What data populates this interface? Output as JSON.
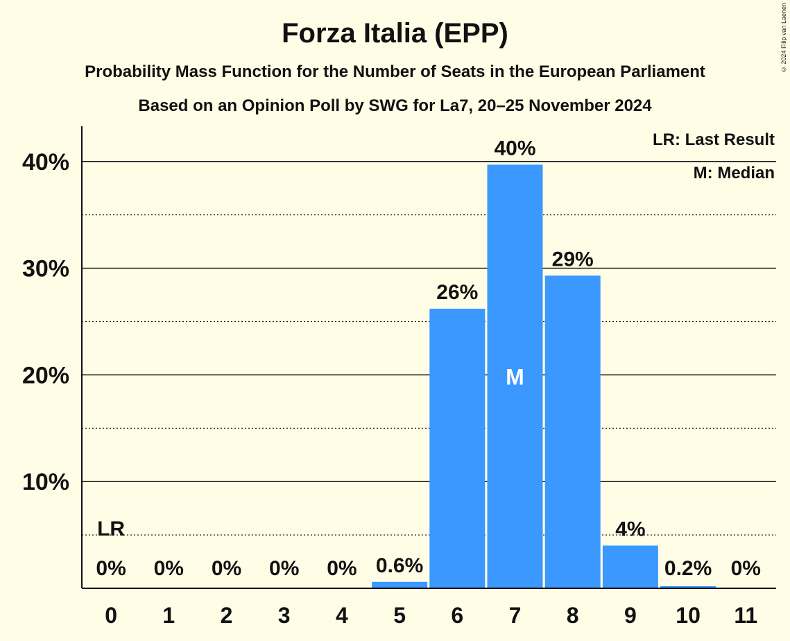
{
  "page": {
    "title": "Forza Italia (EPP)",
    "subtitle1": "Probability Mass Function for the Number of Seats in the European Parliament",
    "subtitle2": "Based on an Opinion Poll by SWG for La7, 20–25 November 2024",
    "copyright": "© 2024 Filip van Laenen"
  },
  "legend": {
    "lr": "LR: Last Result",
    "median": "M: Median"
  },
  "colors": {
    "bar": "#3A98FF",
    "background": "#FFFDE6",
    "text": "#111111"
  },
  "chart_data": {
    "type": "bar",
    "title": "Forza Italia (EPP)",
    "xlabel": "",
    "ylabel": "",
    "categories": [
      "0",
      "1",
      "2",
      "3",
      "4",
      "5",
      "6",
      "7",
      "8",
      "9",
      "10",
      "11"
    ],
    "values": [
      0,
      0,
      0,
      0,
      0,
      0.6,
      26.2,
      39.7,
      29.3,
      4.0,
      0.2,
      0
    ],
    "data_labels": [
      "0%",
      "0%",
      "0%",
      "0%",
      "0%",
      "0.6%",
      "26%",
      "40%",
      "29%",
      "4%",
      "0.2%",
      "0%"
    ],
    "ylim": [
      0,
      43
    ],
    "major_ticks": [
      10,
      20,
      30,
      40
    ],
    "major_tick_labels": [
      "10%",
      "20%",
      "30%",
      "40%"
    ],
    "minor_gridlines": [
      5,
      15,
      25,
      35
    ],
    "last_result_category": "0",
    "last_result_marker": "LR",
    "median_category": "7",
    "median_marker": "M",
    "legend_position": "top-right"
  }
}
